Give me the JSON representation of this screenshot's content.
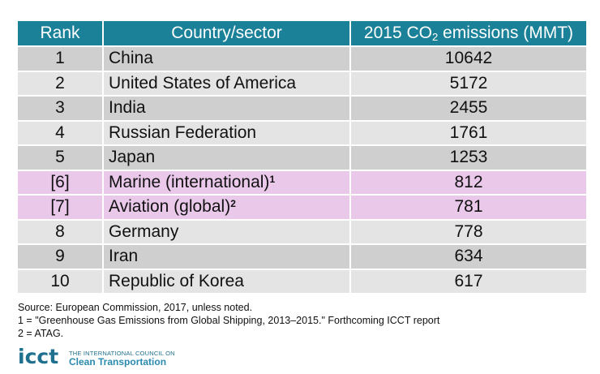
{
  "table": {
    "headers": {
      "rank": "Rank",
      "country": "Country/sector",
      "emissions_pre": "2015 CO",
      "emissions_sub": "2",
      "emissions_post": " emissions (MMT)"
    },
    "rows": [
      {
        "rank": "1",
        "country": "China",
        "footnote": "",
        "value": "10642",
        "highlight": "gray"
      },
      {
        "rank": "2",
        "country": "United States of America",
        "footnote": "",
        "value": "5172",
        "highlight": "light"
      },
      {
        "rank": "3",
        "country": "India",
        "footnote": "",
        "value": "2455",
        "highlight": "gray"
      },
      {
        "rank": "4",
        "country": "Russian Federation",
        "footnote": "",
        "value": "1761",
        "highlight": "light"
      },
      {
        "rank": "5",
        "country": "Japan",
        "footnote": "",
        "value": "1253",
        "highlight": "gray"
      },
      {
        "rank": "[6]",
        "country": "Marine (international)",
        "footnote": "1",
        "value": "812",
        "highlight": "pink"
      },
      {
        "rank": "[7]",
        "country": "Aviation (global)",
        "footnote": "2",
        "value": "781",
        "highlight": "pink"
      },
      {
        "rank": "8",
        "country": "Germany",
        "footnote": "",
        "value": "778",
        "highlight": "light"
      },
      {
        "rank": "9",
        "country": "Iran",
        "footnote": "",
        "value": "634",
        "highlight": "gray"
      },
      {
        "rank": "10",
        "country": "Republic of Korea",
        "footnote": "",
        "value": "617",
        "highlight": "light"
      }
    ]
  },
  "notes": {
    "source": "Source:  European Commission, 2017, unless noted.",
    "note1": "1 = \"Greenhouse Gas Emissions from Global Shipping, 2013–2015.\"  Forthcoming ICCT report",
    "note2": "2 = ATAG."
  },
  "logo": {
    "mark": "icct",
    "line1": "THE INTERNATIONAL COUNCIL ON",
    "line2": "Clean Transportation"
  },
  "colors": {
    "header": "#1b8199",
    "row_gray": "#cfcfcf",
    "row_light": "#e4e4e4",
    "row_pink": "#e9c8ea",
    "brand": "#1f6f8f"
  }
}
